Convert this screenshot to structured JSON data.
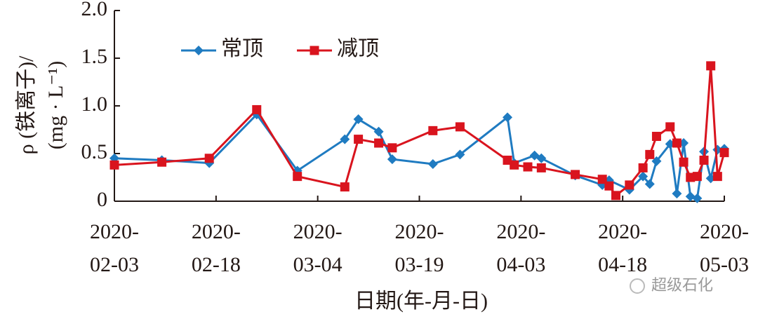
{
  "chart_data": {
    "type": "line",
    "y_label": [
      "ρ (铁离子)/",
      "(mg · L⁻¹)"
    ],
    "x_label": "日期(年-月-日)",
    "watermark": "超级石化",
    "xlim": [
      "2020-02-03",
      "2020-05-03"
    ],
    "xticks": [
      "2020-02-03",
      "2020-02-18",
      "2020-03-04",
      "2020-03-19",
      "2020-04-03",
      "2020-04-18",
      "2020-05-03"
    ],
    "ylim": [
      0,
      2
    ],
    "yticks": [
      0,
      0.5,
      {
        "value": 1,
        "label": "1.0"
      },
      1.5,
      {
        "value": 2,
        "label": "2.0"
      }
    ],
    "legend": "upper left",
    "series": [
      {
        "name": "常顶",
        "color": "#1f7bc1",
        "marker": "diamond",
        "x": [
          "2020-02-03",
          "2020-02-10",
          "2020-02-17",
          "2020-02-24",
          "2020-03-01",
          "2020-03-08",
          "2020-03-10",
          "2020-03-13",
          "2020-03-15",
          "2020-03-21",
          "2020-03-25",
          "2020-04-01",
          "2020-04-02",
          "2020-04-05",
          "2020-04-06",
          "2020-04-11",
          "2020-04-15",
          "2020-04-16",
          "2020-04-19",
          "2020-04-21",
          "2020-04-22",
          "2020-04-23",
          "2020-04-25",
          "2020-04-26",
          "2020-04-27",
          "2020-04-28",
          "2020-04-29",
          "2020-04-30",
          "2020-05-01",
          "2020-05-02",
          "2020-05-03"
        ],
        "values": [
          0.45,
          0.43,
          0.4,
          0.91,
          0.32,
          0.65,
          0.86,
          0.73,
          0.44,
          0.39,
          0.49,
          0.88,
          0.4,
          0.48,
          0.45,
          0.27,
          0.17,
          0.22,
          0.12,
          0.26,
          0.18,
          0.42,
          0.6,
          0.08,
          0.61,
          0.05,
          0.03,
          0.52,
          0.24,
          0.54,
          0.55
        ]
      },
      {
        "name": "减顶",
        "color": "#d9141e",
        "marker": "square",
        "x": [
          "2020-02-03",
          "2020-02-10",
          "2020-02-17",
          "2020-02-24",
          "2020-03-01",
          "2020-03-08",
          "2020-03-10",
          "2020-03-13",
          "2020-03-15",
          "2020-03-21",
          "2020-03-25",
          "2020-04-01",
          "2020-04-02",
          "2020-04-04",
          "2020-04-06",
          "2020-04-11",
          "2020-04-15",
          "2020-04-16",
          "2020-04-17",
          "2020-04-19",
          "2020-04-21",
          "2020-04-22",
          "2020-04-23",
          "2020-04-25",
          "2020-04-26",
          "2020-04-27",
          "2020-04-28",
          "2020-04-29",
          "2020-04-30",
          "2020-05-01",
          "2020-05-02",
          "2020-05-03"
        ],
        "values": [
          0.38,
          0.41,
          0.45,
          0.96,
          0.26,
          0.15,
          0.65,
          0.61,
          0.56,
          0.74,
          0.78,
          0.43,
          0.38,
          0.36,
          0.35,
          0.28,
          0.23,
          0.16,
          0.06,
          0.17,
          0.35,
          0.49,
          0.68,
          0.78,
          0.61,
          0.41,
          0.25,
          0.26,
          0.43,
          1.42,
          0.26,
          0.51
        ]
      }
    ]
  }
}
